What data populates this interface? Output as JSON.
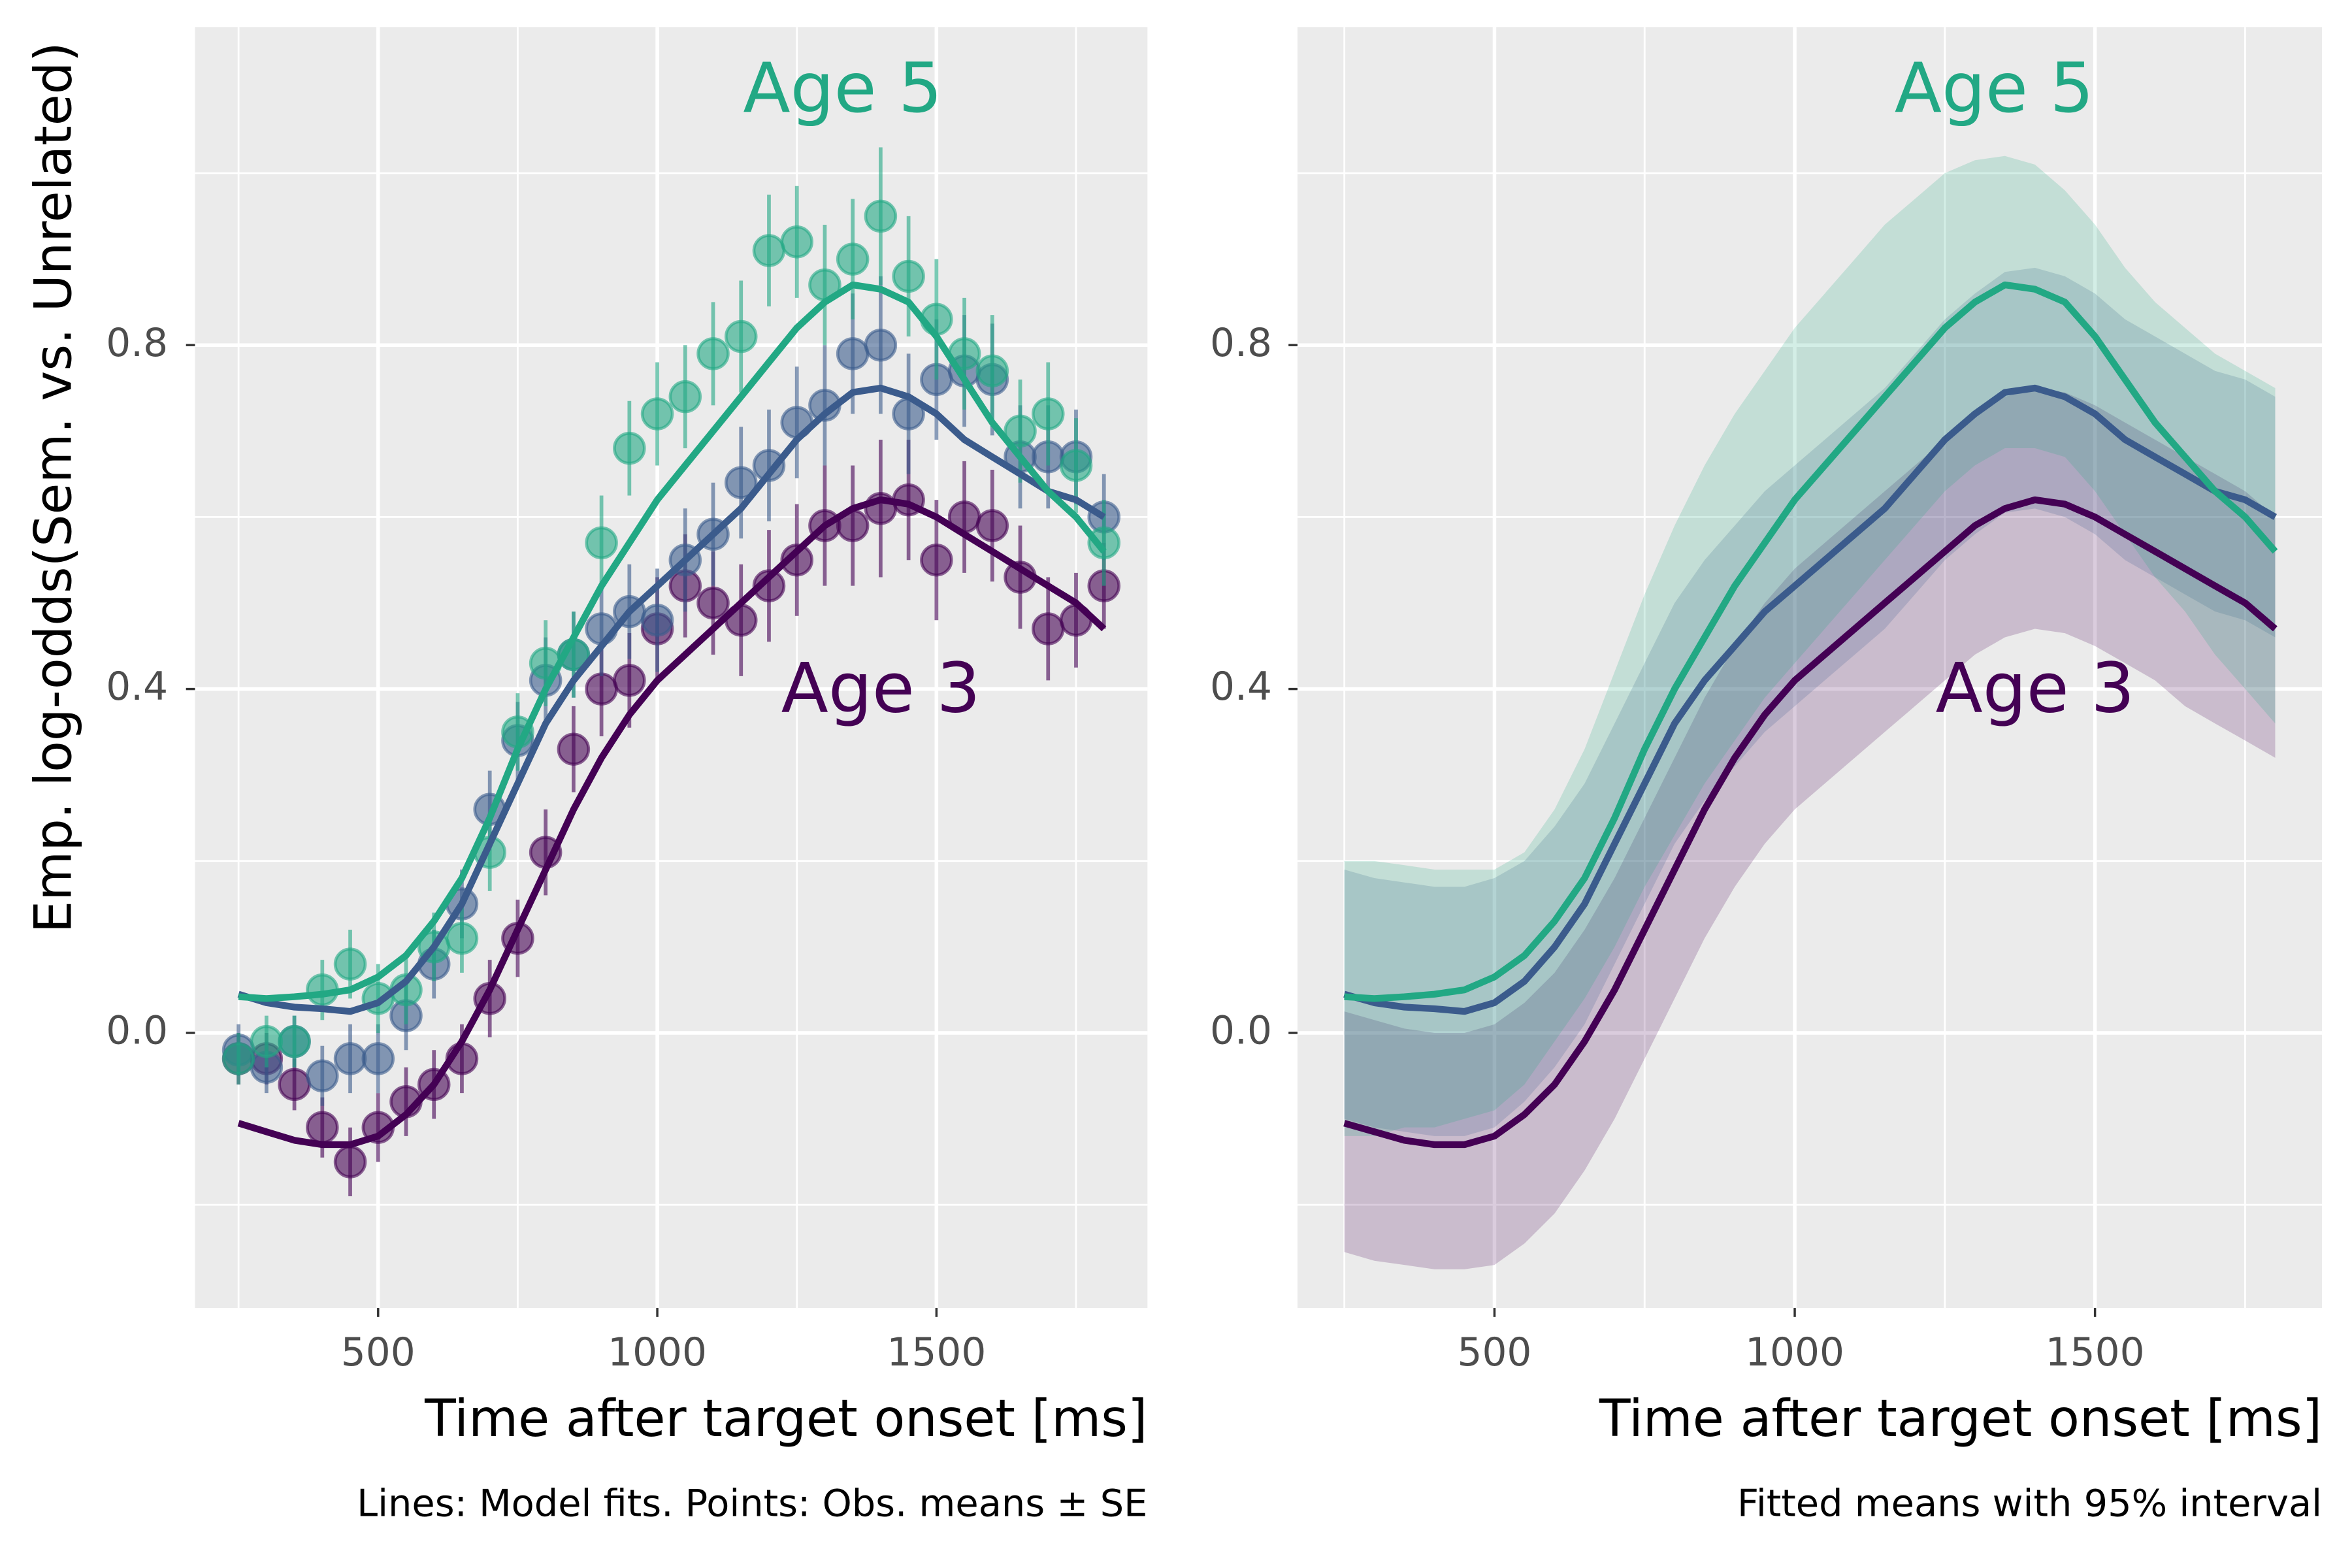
{
  "chart_data": [
    {
      "type": "scatter",
      "x_label": "Time after target onset [ms]",
      "y_label": "Emp. log-odds(Sem. vs. Unrelated)",
      "caption": "Lines: Model fits. Points: Obs. means ± SE",
      "xlim": [
        172,
        1878
      ],
      "ylim": [
        -0.32,
        1.17
      ],
      "xticks": [
        500,
        1000,
        1500
      ],
      "yticks": [
        {
          "value": 0,
          "label": "0.0"
        },
        0.4,
        0.8
      ],
      "x_minor": [
        250,
        750,
        1250,
        1750
      ],
      "y_minor": [
        -0.2,
        0.2,
        0.6,
        1.0
      ],
      "grid": true,
      "x": [
        250,
        300,
        350,
        400,
        450,
        500,
        550,
        600,
        650,
        700,
        750,
        800,
        850,
        900,
        950,
        1000,
        1050,
        1100,
        1150,
        1200,
        1250,
        1300,
        1350,
        1400,
        1450,
        1500,
        1550,
        1600,
        1650,
        1700,
        1750,
        1800
      ],
      "series": [
        {
          "name": "Age 3",
          "color": "#440154",
          "values": [
            -0.03,
            -0.03,
            -0.06,
            -0.11,
            -0.15,
            -0.11,
            -0.08,
            -0.06,
            -0.03,
            0.04,
            0.11,
            0.21,
            0.33,
            0.4,
            0.41,
            0.47,
            0.52,
            0.5,
            0.48,
            0.52,
            0.55,
            0.59,
            0.59,
            0.61,
            0.62,
            0.55,
            0.6,
            0.59,
            0.53,
            0.47,
            0.48,
            0.52
          ],
          "errors": [
            0.03,
            0.03,
            0.03,
            0.035,
            0.04,
            0.04,
            0.04,
            0.04,
            0.04,
            0.045,
            0.045,
            0.05,
            0.05,
            0.055,
            0.055,
            0.06,
            0.06,
            0.06,
            0.065,
            0.065,
            0.065,
            0.07,
            0.07,
            0.08,
            0.07,
            0.07,
            0.065,
            0.065,
            0.06,
            0.06,
            0.055,
            0.05
          ],
          "fit": [
            -0.105,
            -0.115,
            -0.125,
            -0.13,
            -0.13,
            -0.12,
            -0.095,
            -0.06,
            -0.01,
            0.05,
            0.12,
            0.19,
            0.26,
            0.32,
            0.37,
            0.41,
            0.44,
            0.47,
            0.5,
            0.53,
            0.56,
            0.59,
            0.61,
            0.62,
            0.615,
            0.6,
            0.58,
            0.56,
            0.54,
            0.52,
            0.5,
            0.47
          ]
        },
        {
          "color": "#3b5b8c",
          "values": [
            -0.02,
            -0.04,
            -0.01,
            -0.05,
            -0.03,
            -0.03,
            0.02,
            0.08,
            0.15,
            0.26,
            0.34,
            0.41,
            0.44,
            0.47,
            0.49,
            0.48,
            0.55,
            0.58,
            0.64,
            0.66,
            0.71,
            0.73,
            0.79,
            0.8,
            0.72,
            0.76,
            0.77,
            0.76,
            0.67,
            0.67,
            0.67,
            0.6
          ],
          "errors": [
            0.03,
            0.03,
            0.03,
            0.035,
            0.04,
            0.04,
            0.04,
            0.04,
            0.04,
            0.045,
            0.045,
            0.05,
            0.05,
            0.055,
            0.055,
            0.06,
            0.06,
            0.06,
            0.065,
            0.065,
            0.065,
            0.07,
            0.07,
            0.08,
            0.07,
            0.07,
            0.065,
            0.065,
            0.06,
            0.06,
            0.055,
            0.05
          ],
          "fit": [
            0.045,
            0.035,
            0.03,
            0.028,
            0.025,
            0.035,
            0.06,
            0.1,
            0.15,
            0.22,
            0.29,
            0.36,
            0.41,
            0.45,
            0.49,
            0.52,
            0.55,
            0.58,
            0.61,
            0.65,
            0.69,
            0.72,
            0.745,
            0.75,
            0.74,
            0.72,
            0.69,
            0.67,
            0.65,
            0.63,
            0.62,
            0.6
          ]
        },
        {
          "name": "Age 5",
          "color": "#22a884",
          "values": [
            -0.03,
            -0.01,
            -0.01,
            0.05,
            0.08,
            0.04,
            0.05,
            0.1,
            0.11,
            0.21,
            0.35,
            0.43,
            0.44,
            0.57,
            0.68,
            0.72,
            0.74,
            0.79,
            0.81,
            0.91,
            0.92,
            0.87,
            0.9,
            0.95,
            0.88,
            0.83,
            0.79,
            0.77,
            0.7,
            0.72,
            0.66,
            0.57
          ],
          "errors": [
            0.03,
            0.03,
            0.03,
            0.035,
            0.04,
            0.04,
            0.04,
            0.04,
            0.04,
            0.045,
            0.045,
            0.05,
            0.05,
            0.055,
            0.055,
            0.06,
            0.06,
            0.06,
            0.065,
            0.065,
            0.065,
            0.07,
            0.07,
            0.08,
            0.07,
            0.07,
            0.065,
            0.065,
            0.06,
            0.06,
            0.055,
            0.05
          ],
          "fit": [
            0.042,
            0.04,
            0.042,
            0.045,
            0.05,
            0.065,
            0.09,
            0.13,
            0.18,
            0.25,
            0.33,
            0.4,
            0.46,
            0.52,
            0.57,
            0.62,
            0.66,
            0.7,
            0.74,
            0.78,
            0.82,
            0.85,
            0.87,
            0.865,
            0.85,
            0.81,
            0.76,
            0.71,
            0.67,
            0.63,
            0.6,
            0.56
          ]
        }
      ]
    },
    {
      "type": "line",
      "x_label": "Time after target onset [ms]",
      "caption": "Fitted means with 95% interval",
      "xlim": [
        172,
        1878
      ],
      "ylim": [
        -0.32,
        1.17
      ],
      "xticks": [
        500,
        1000,
        1500
      ],
      "yticks": [
        {
          "value": 0,
          "label": "0.0"
        },
        0.4,
        0.8
      ],
      "x_minor": [
        250,
        750,
        1250,
        1750
      ],
      "y_minor": [
        -0.2,
        0.2,
        0.6,
        1.0
      ],
      "grid": true,
      "x": [
        250,
        300,
        350,
        400,
        450,
        500,
        550,
        600,
        650,
        700,
        750,
        800,
        850,
        900,
        950,
        1000,
        1050,
        1100,
        1150,
        1200,
        1250,
        1300,
        1350,
        1400,
        1450,
        1500,
        1550,
        1600,
        1650,
        1700,
        1750,
        1800
      ],
      "series": [
        {
          "name": "Age 3",
          "color": "#440154",
          "values": [
            -0.105,
            -0.115,
            -0.125,
            -0.13,
            -0.13,
            -0.12,
            -0.095,
            -0.06,
            -0.01,
            0.05,
            0.12,
            0.19,
            0.26,
            0.32,
            0.37,
            0.41,
            0.44,
            0.47,
            0.5,
            0.53,
            0.56,
            0.59,
            0.61,
            0.62,
            0.615,
            0.6,
            0.58,
            0.56,
            0.54,
            0.52,
            0.5,
            0.47
          ],
          "lower": [
            -0.255,
            -0.265,
            -0.27,
            -0.275,
            -0.275,
            -0.27,
            -0.245,
            -0.21,
            -0.16,
            -0.1,
            -0.03,
            0.04,
            0.11,
            0.17,
            0.22,
            0.26,
            0.29,
            0.32,
            0.35,
            0.38,
            0.41,
            0.44,
            0.46,
            0.47,
            0.465,
            0.45,
            0.43,
            0.41,
            0.38,
            0.36,
            0.34,
            0.32
          ],
          "upper": [
            0.025,
            0.015,
            0.005,
            0,
            0,
            0.01,
            0.035,
            0.07,
            0.12,
            0.18,
            0.25,
            0.32,
            0.39,
            0.45,
            0.5,
            0.54,
            0.57,
            0.6,
            0.63,
            0.66,
            0.69,
            0.72,
            0.74,
            0.75,
            0.745,
            0.73,
            0.71,
            0.69,
            0.67,
            0.65,
            0.63,
            0.6
          ]
        },
        {
          "color": "#3b5b8c",
          "values": [
            0.045,
            0.035,
            0.03,
            0.028,
            0.025,
            0.035,
            0.06,
            0.1,
            0.15,
            0.22,
            0.29,
            0.36,
            0.41,
            0.45,
            0.49,
            0.52,
            0.55,
            0.58,
            0.61,
            0.65,
            0.69,
            0.72,
            0.745,
            0.75,
            0.74,
            0.72,
            0.69,
            0.67,
            0.65,
            0.63,
            0.62,
            0.6
          ],
          "lower": [
            -0.1,
            -0.11,
            -0.115,
            -0.12,
            -0.12,
            -0.11,
            -0.08,
            -0.04,
            0.01,
            0.08,
            0.15,
            0.22,
            0.27,
            0.31,
            0.35,
            0.38,
            0.41,
            0.44,
            0.47,
            0.51,
            0.55,
            0.58,
            0.605,
            0.61,
            0.6,
            0.58,
            0.55,
            0.53,
            0.51,
            0.49,
            0.48,
            0.46
          ],
          "upper": [
            0.19,
            0.18,
            0.175,
            0.17,
            0.17,
            0.18,
            0.2,
            0.24,
            0.29,
            0.36,
            0.43,
            0.5,
            0.55,
            0.59,
            0.63,
            0.66,
            0.69,
            0.72,
            0.75,
            0.79,
            0.83,
            0.86,
            0.885,
            0.89,
            0.88,
            0.86,
            0.83,
            0.81,
            0.79,
            0.77,
            0.76,
            0.74
          ]
        },
        {
          "name": "Age 5",
          "color": "#22a884",
          "values": [
            0.042,
            0.04,
            0.042,
            0.045,
            0.05,
            0.065,
            0.09,
            0.13,
            0.18,
            0.25,
            0.33,
            0.4,
            0.46,
            0.52,
            0.57,
            0.62,
            0.66,
            0.7,
            0.74,
            0.78,
            0.82,
            0.85,
            0.87,
            0.865,
            0.85,
            0.81,
            0.76,
            0.71,
            0.67,
            0.63,
            0.6,
            0.56
          ],
          "lower": [
            -0.12,
            -0.12,
            -0.11,
            -0.11,
            -0.1,
            -0.09,
            -0.06,
            -0.01,
            0.04,
            0.1,
            0.17,
            0.23,
            0.29,
            0.34,
            0.39,
            0.43,
            0.47,
            0.51,
            0.55,
            0.59,
            0.63,
            0.66,
            0.68,
            0.68,
            0.67,
            0.63,
            0.58,
            0.53,
            0.49,
            0.44,
            0.4,
            0.36
          ],
          "upper": [
            0.2,
            0.2,
            0.195,
            0.19,
            0.19,
            0.19,
            0.21,
            0.26,
            0.33,
            0.42,
            0.51,
            0.59,
            0.66,
            0.72,
            0.77,
            0.82,
            0.86,
            0.9,
            0.94,
            0.97,
            1.0,
            1.015,
            1.02,
            1.01,
            0.98,
            0.94,
            0.89,
            0.85,
            0.82,
            0.79,
            0.77,
            0.75
          ]
        }
      ]
    }
  ]
}
